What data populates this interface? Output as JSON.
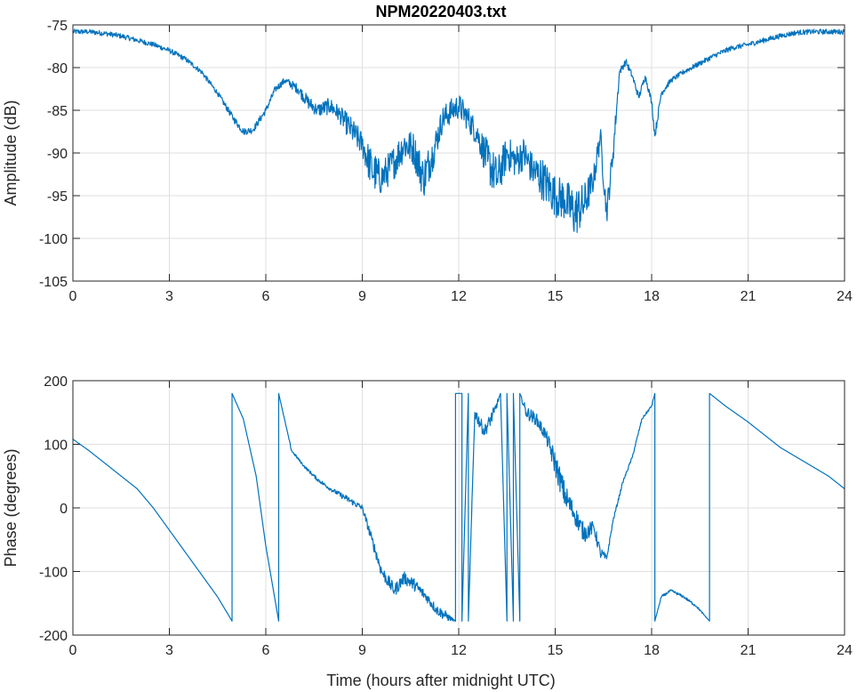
{
  "chart_data": [
    {
      "type": "line",
      "title": "NPM20220403.txt",
      "xlabel": "",
      "ylabel": "Amplitude (dB)",
      "xlim": [
        0,
        24
      ],
      "ylim": [
        -105,
        -75
      ],
      "xticks": [
        "0",
        "3",
        "6",
        "9",
        "12",
        "15",
        "18",
        "21",
        "24"
      ],
      "yticks": [
        "-75",
        "-80",
        "-85",
        "-90",
        "-95",
        "-100",
        "-105"
      ],
      "grid": true,
      "color": "#0072BD",
      "x": [
        0,
        0.5,
        1,
        1.5,
        2,
        2.5,
        3,
        3.5,
        4,
        4.5,
        5,
        5.3,
        5.6,
        6,
        6.3,
        6.6,
        7,
        7.3,
        7.6,
        8,
        8.3,
        8.6,
        9,
        9.3,
        9.6,
        10,
        10.3,
        10.6,
        10.9,
        11.2,
        11.5,
        11.8,
        12,
        12.3,
        12.6,
        12.9,
        13.2,
        13.5,
        13.8,
        14,
        14.3,
        14.6,
        15,
        15.3,
        15.6,
        15.9,
        16.2,
        16.4,
        16.6,
        16.8,
        17,
        17.2,
        17.4,
        17.6,
        17.8,
        18,
        18.1,
        18.3,
        18.6,
        19,
        19.5,
        20,
        20.5,
        21,
        21.5,
        22,
        22.5,
        23,
        23.5,
        24
      ],
      "y": [
        -75.8,
        -75.8,
        -76,
        -76.3,
        -76.8,
        -77.3,
        -78,
        -79,
        -80.5,
        -83,
        -86,
        -87.5,
        -87.3,
        -85,
        -82.5,
        -81.5,
        -82.5,
        -84,
        -85,
        -84.5,
        -85.5,
        -87,
        -89,
        -92,
        -93,
        -91,
        -89,
        -89.5,
        -93,
        -90,
        -86,
        -85,
        -84.5,
        -86,
        -88,
        -91,
        -93,
        -90,
        -91,
        -90,
        -92,
        -93,
        -95,
        -95.5,
        -97,
        -96,
        -93,
        -88,
        -97,
        -90,
        -80.5,
        -79.3,
        -81,
        -83.5,
        -81,
        -84,
        -88,
        -83,
        -81.5,
        -80.5,
        -79.5,
        -78.5,
        -77.7,
        -77.3,
        -76.8,
        -76.3,
        -75.9,
        -75.8,
        -75.8,
        -75.8
      ],
      "noise": [
        0.3,
        0.3,
        0.3,
        0.3,
        0.3,
        0.3,
        0.3,
        0.3,
        0.3,
        0.3,
        0.4,
        0.4,
        0.4,
        0.4,
        0.4,
        0.4,
        0.6,
        0.8,
        0.8,
        1,
        1,
        1.5,
        1.5,
        2.5,
        2,
        2,
        2,
        2,
        2.5,
        2,
        1.5,
        1.5,
        1.5,
        1.5,
        1.5,
        2.5,
        2.5,
        2,
        2,
        2,
        2,
        2.5,
        2.5,
        2.5,
        3,
        2.5,
        1.5,
        1.5,
        1.5,
        1.5,
        0.4,
        0.4,
        0.4,
        0.4,
        0.4,
        0.4,
        0.6,
        0.4,
        0.3,
        0.3,
        0.3,
        0.3,
        0.3,
        0.3,
        0.3,
        0.3,
        0.3,
        0.3,
        0.3,
        0.3
      ]
    },
    {
      "type": "line",
      "title": "",
      "xlabel": "Time (hours after midnight UTC)",
      "ylabel": "Phase (degrees)",
      "xlim": [
        0,
        24
      ],
      "ylim": [
        -200,
        200
      ],
      "xticks": [
        "0",
        "3",
        "6",
        "9",
        "12",
        "15",
        "18",
        "21",
        "24"
      ],
      "yticks": [
        "200",
        "100",
        "0",
        "-100",
        "-200"
      ],
      "grid": true,
      "color": "#0072BD",
      "x": [
        0,
        0.5,
        1,
        1.5,
        2,
        2.5,
        3,
        3.5,
        4,
        4.5,
        4.95,
        4.95,
        5.3,
        5.7,
        6,
        6.4,
        6.4,
        6.8,
        7.2,
        7.6,
        8,
        8.5,
        9,
        9.3,
        9.6,
        10,
        10.3,
        10.6,
        11,
        11.3,
        11.6,
        11.9,
        11.9,
        12.1,
        12.1,
        12.3,
        12.3,
        12.5,
        12.8,
        13.1,
        13.3,
        13.5,
        13.5,
        13.7,
        13.7,
        13.9,
        13.9,
        14.1,
        14.4,
        14.7,
        15,
        15.3,
        15.6,
        15.9,
        16.2,
        16.4,
        16.6,
        16.8,
        17.1,
        17.4,
        17.7,
        18,
        18.1,
        18.1,
        18.3,
        18.6,
        19,
        19.4,
        19.8,
        19.8,
        20.3,
        21,
        21.5,
        22,
        22.5,
        23,
        23.5,
        24
      ],
      "y": [
        108,
        90,
        70,
        50,
        30,
        0,
        -35,
        -70,
        -105,
        -140,
        -178,
        180,
        140,
        50,
        -60,
        -178,
        180,
        90,
        65,
        45,
        30,
        15,
        0,
        -50,
        -100,
        -130,
        -110,
        -120,
        -140,
        -160,
        -170,
        -178,
        180,
        180,
        -178,
        180,
        -178,
        150,
        120,
        150,
        180,
        -178,
        180,
        -178,
        180,
        -178,
        180,
        150,
        140,
        115,
        70,
        20,
        -10,
        -40,
        -30,
        -70,
        -80,
        -20,
        40,
        80,
        140,
        160,
        180,
        -178,
        -140,
        -130,
        -140,
        -155,
        -178,
        180,
        160,
        135,
        115,
        95,
        80,
        65,
        50,
        30
      ],
      "noise": [
        0,
        0,
        0,
        0,
        0,
        0,
        0,
        0,
        0,
        0,
        0,
        0,
        0,
        0,
        0,
        0,
        0,
        2,
        2,
        3,
        3,
        5,
        5,
        8,
        10,
        10,
        10,
        10,
        8,
        8,
        8,
        0,
        0,
        0,
        0,
        0,
        0,
        10,
        10,
        10,
        0,
        0,
        0,
        0,
        0,
        0,
        0,
        10,
        10,
        10,
        20,
        20,
        15,
        15,
        10,
        10,
        5,
        3,
        2,
        2,
        2,
        2,
        0,
        0,
        2,
        2,
        2,
        2,
        0,
        0,
        0,
        0,
        0,
        0,
        0,
        0,
        0,
        0
      ]
    }
  ]
}
